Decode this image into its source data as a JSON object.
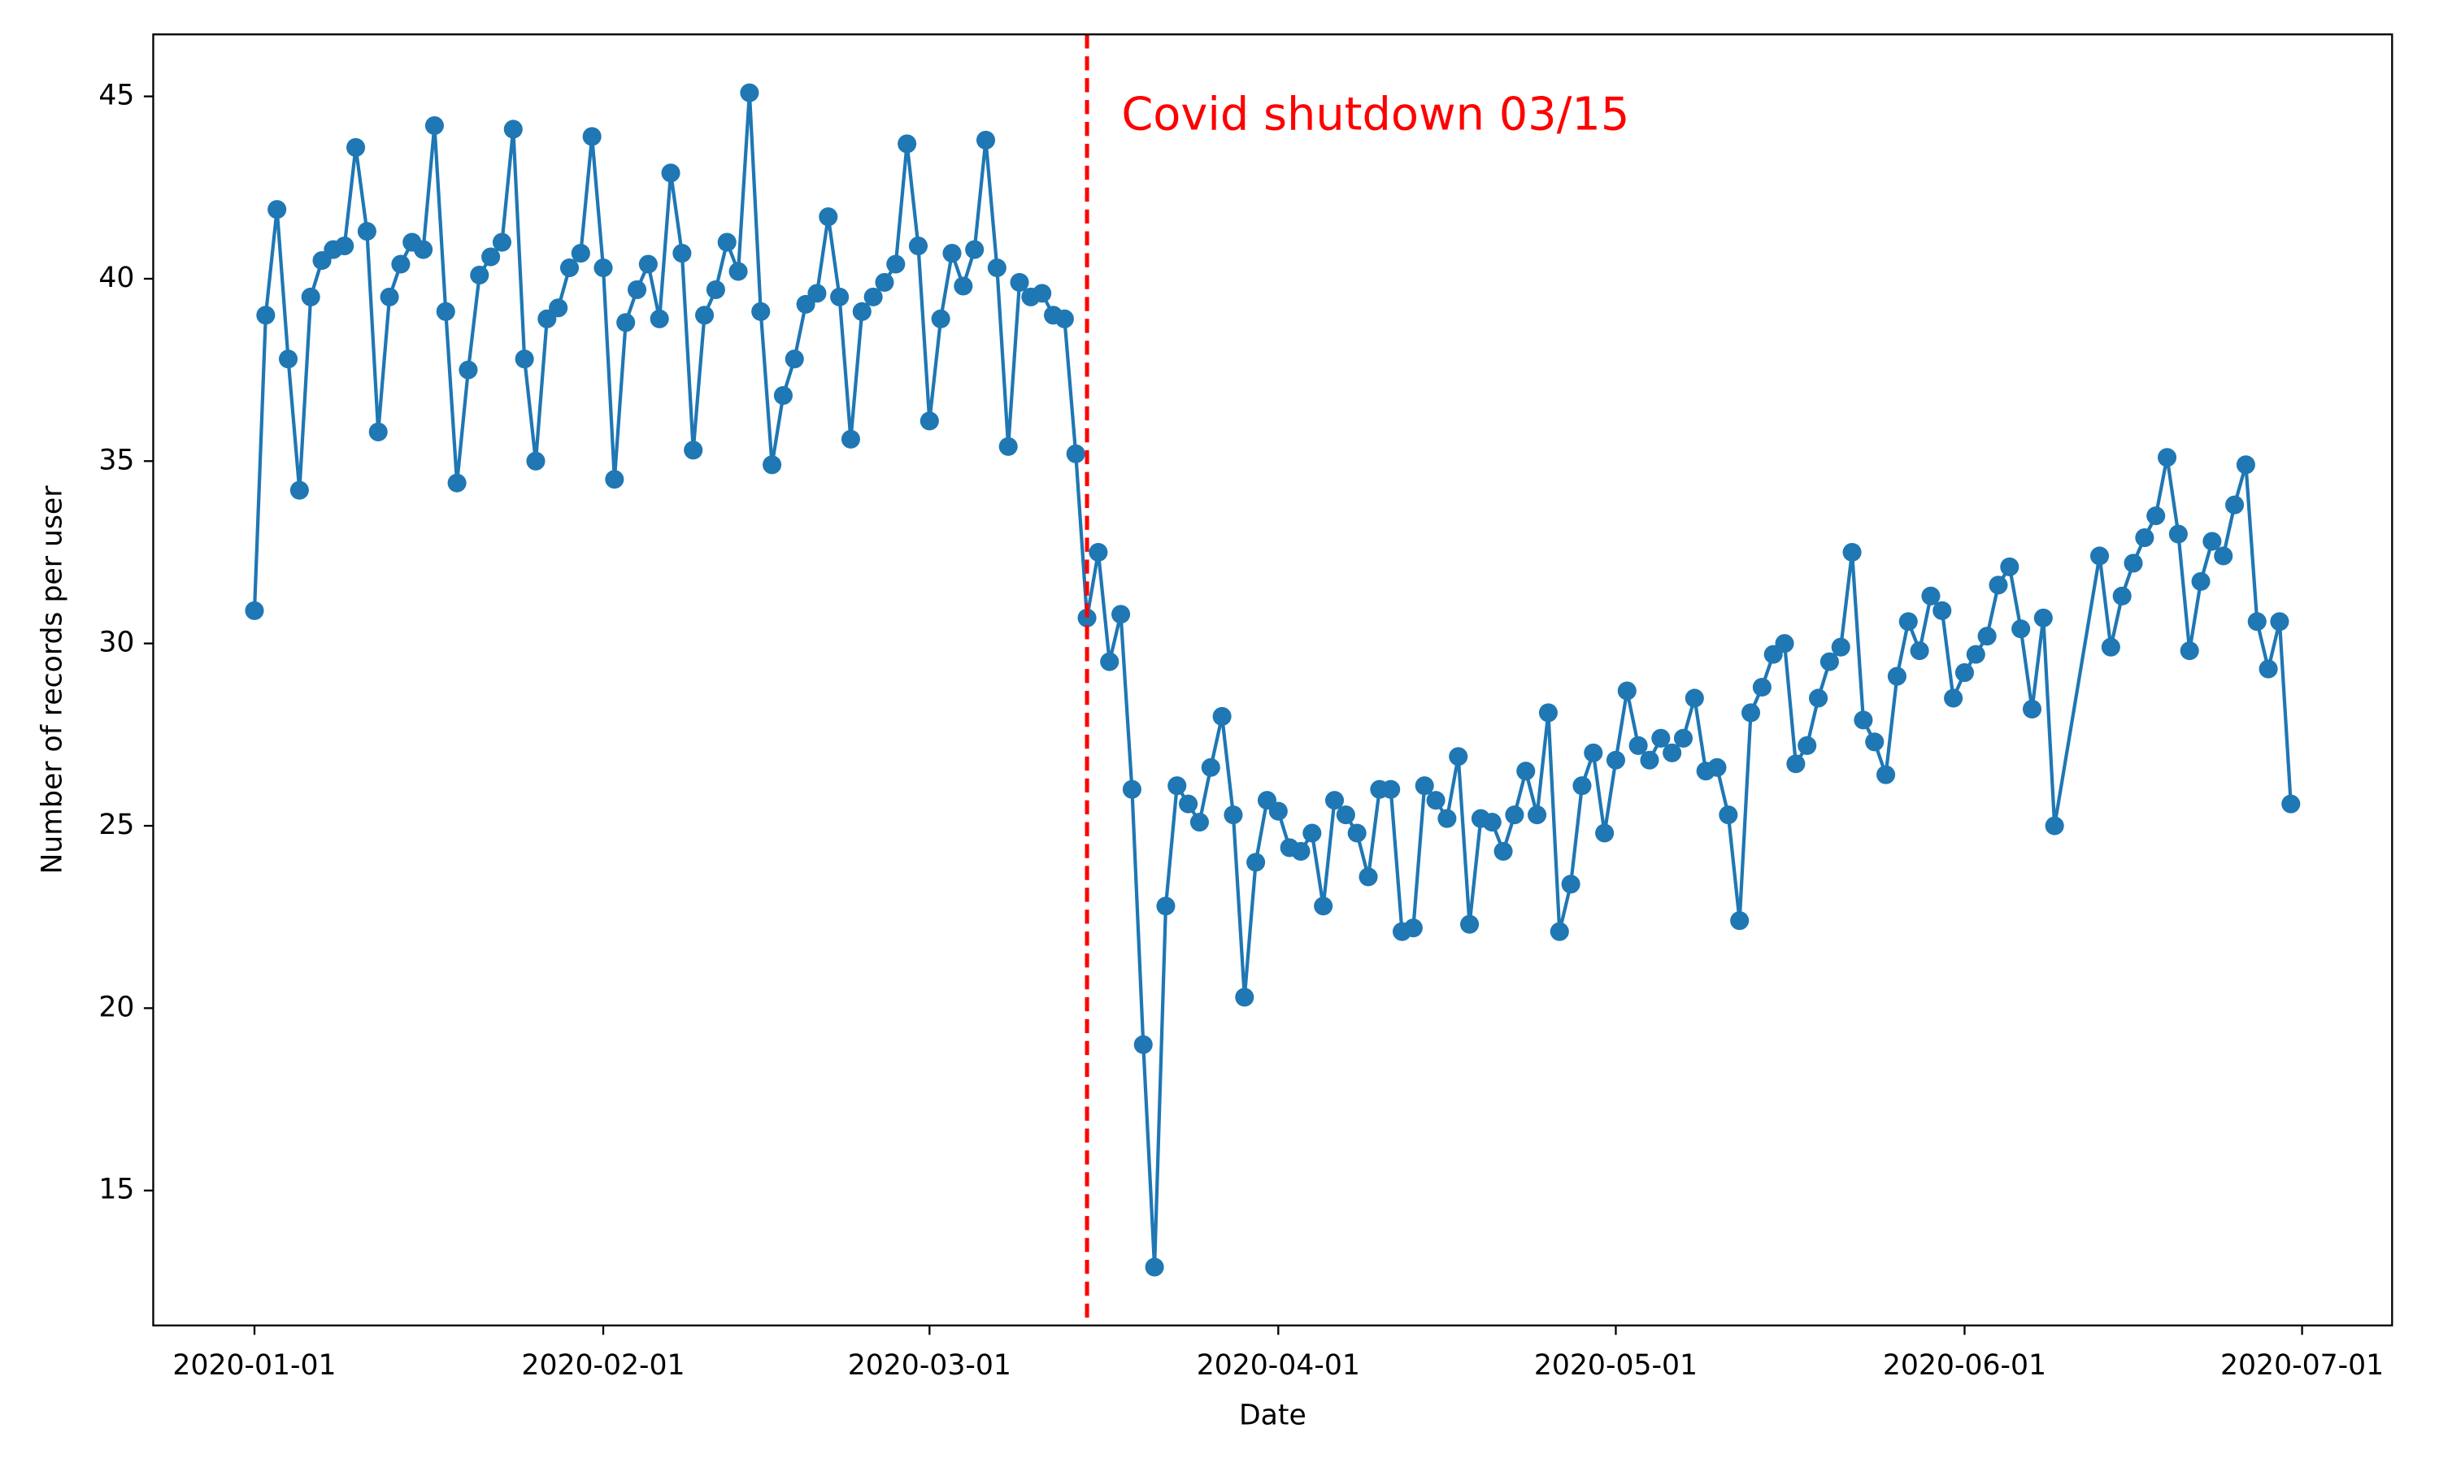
{
  "chart_data": {
    "type": "line",
    "xlabel": "Date",
    "ylabel": "Number of records per user",
    "color": "#1f77b4",
    "x": [
      "2020-01-01",
      "2020-01-02",
      "2020-01-03",
      "2020-01-04",
      "2020-01-05",
      "2020-01-06",
      "2020-01-07",
      "2020-01-08",
      "2020-01-09",
      "2020-01-10",
      "2020-01-11",
      "2020-01-12",
      "2020-01-13",
      "2020-01-14",
      "2020-01-15",
      "2020-01-16",
      "2020-01-17",
      "2020-01-18",
      "2020-01-19",
      "2020-01-20",
      "2020-01-21",
      "2020-01-22",
      "2020-01-23",
      "2020-01-24",
      "2020-01-25",
      "2020-01-26",
      "2020-01-27",
      "2020-01-28",
      "2020-01-29",
      "2020-01-30",
      "2020-01-31",
      "2020-02-01",
      "2020-02-02",
      "2020-02-03",
      "2020-02-04",
      "2020-02-05",
      "2020-02-06",
      "2020-02-07",
      "2020-02-08",
      "2020-02-09",
      "2020-02-10",
      "2020-02-11",
      "2020-02-12",
      "2020-02-13",
      "2020-02-14",
      "2020-02-15",
      "2020-02-16",
      "2020-02-17",
      "2020-02-18",
      "2020-02-19",
      "2020-02-20",
      "2020-02-21",
      "2020-02-22",
      "2020-02-23",
      "2020-02-24",
      "2020-02-25",
      "2020-02-26",
      "2020-02-27",
      "2020-02-28",
      "2020-02-29",
      "2020-03-01",
      "2020-03-02",
      "2020-03-03",
      "2020-03-04",
      "2020-03-05",
      "2020-03-06",
      "2020-03-07",
      "2020-03-08",
      "2020-03-09",
      "2020-03-10",
      "2020-03-11",
      "2020-03-12",
      "2020-03-13",
      "2020-03-14",
      "2020-03-15",
      "2020-03-16",
      "2020-03-17",
      "2020-03-18",
      "2020-03-19",
      "2020-03-20",
      "2020-03-21",
      "2020-03-22",
      "2020-03-23",
      "2020-03-24",
      "2020-03-25",
      "2020-03-26",
      "2020-03-27",
      "2020-03-28",
      "2020-03-29",
      "2020-03-30",
      "2020-03-31",
      "2020-04-01",
      "2020-04-02",
      "2020-04-03",
      "2020-04-04",
      "2020-04-05",
      "2020-04-06",
      "2020-04-07",
      "2020-04-08",
      "2020-04-09",
      "2020-04-10",
      "2020-04-11",
      "2020-04-12",
      "2020-04-13",
      "2020-04-14",
      "2020-04-15",
      "2020-04-16",
      "2020-04-17",
      "2020-04-18",
      "2020-04-19",
      "2020-04-20",
      "2020-04-21",
      "2020-04-22",
      "2020-04-23",
      "2020-04-24",
      "2020-04-25",
      "2020-04-26",
      "2020-04-27",
      "2020-04-28",
      "2020-04-29",
      "2020-04-30",
      "2020-05-01",
      "2020-05-02",
      "2020-05-03",
      "2020-05-04",
      "2020-05-05",
      "2020-05-06",
      "2020-05-07",
      "2020-05-08",
      "2020-05-09",
      "2020-05-10",
      "2020-05-11",
      "2020-05-12",
      "2020-05-13",
      "2020-05-14",
      "2020-05-15",
      "2020-05-16",
      "2020-05-17",
      "2020-05-18",
      "2020-05-19",
      "2020-05-20",
      "2020-05-21",
      "2020-05-22",
      "2020-05-23",
      "2020-05-24",
      "2020-05-25",
      "2020-05-26",
      "2020-05-27",
      "2020-05-28",
      "2020-05-29",
      "2020-05-30",
      "2020-05-31",
      "2020-06-01",
      "2020-06-02",
      "2020-06-03",
      "2020-06-04",
      "2020-06-05",
      "2020-06-06",
      "2020-06-07",
      "2020-06-08",
      "2020-06-09",
      "2020-06-13",
      "2020-06-14",
      "2020-06-15",
      "2020-06-16",
      "2020-06-17",
      "2020-06-18",
      "2020-06-19",
      "2020-06-20",
      "2020-06-21",
      "2020-06-22",
      "2020-06-23",
      "2020-06-24",
      "2020-06-25",
      "2020-06-26",
      "2020-06-27",
      "2020-06-28",
      "2020-06-29",
      "2020-06-30"
    ],
    "values": [
      30.9,
      39.0,
      41.9,
      37.8,
      34.2,
      39.5,
      40.5,
      40.8,
      40.9,
      43.6,
      41.3,
      35.8,
      39.5,
      40.4,
      41.0,
      40.8,
      44.2,
      39.1,
      34.4,
      37.5,
      40.1,
      40.6,
      41.0,
      44.1,
      37.8,
      35.0,
      38.9,
      39.2,
      40.3,
      40.7,
      43.9,
      40.3,
      34.5,
      38.8,
      39.7,
      40.4,
      38.9,
      42.9,
      40.7,
      35.3,
      39.0,
      39.7,
      41.0,
      40.2,
      45.1,
      39.1,
      34.9,
      36.8,
      37.8,
      39.3,
      39.6,
      41.7,
      39.5,
      35.6,
      39.1,
      39.5,
      39.9,
      40.4,
      43.7,
      40.9,
      36.1,
      38.9,
      40.7,
      39.8,
      40.8,
      43.8,
      40.3,
      35.4,
      39.9,
      39.5,
      39.6,
      39.0,
      38.9,
      35.2,
      30.7,
      32.5,
      29.5,
      30.8,
      26.0,
      19.0,
      12.9,
      22.8,
      26.1,
      25.6,
      25.1,
      26.6,
      28.0,
      25.3,
      20.3,
      24.0,
      25.7,
      25.4,
      24.4,
      24.3,
      24.8,
      22.8,
      25.7,
      25.3,
      24.8,
      23.6,
      26.0,
      26.0,
      22.1,
      22.2,
      26.1,
      25.7,
      25.2,
      26.9,
      22.3,
      25.2,
      25.1,
      24.3,
      25.3,
      26.5,
      25.3,
      28.1,
      22.1,
      23.4,
      26.1,
      27.0,
      24.8,
      26.8,
      28.7,
      27.2,
      26.8,
      27.4,
      27.0,
      27.4,
      28.5,
      26.5,
      26.6,
      25.3,
      22.4,
      28.1,
      28.8,
      29.7,
      30.0,
      26.7,
      27.2,
      28.5,
      29.5,
      29.9,
      32.5,
      27.9,
      27.3,
      26.4,
      29.1,
      30.6,
      29.8,
      31.3,
      30.9,
      28.5,
      29.2,
      29.7,
      30.2,
      31.6,
      32.1,
      30.4,
      28.2,
      30.7,
      25.0,
      32.4,
      29.9,
      31.3,
      32.2,
      32.9,
      33.5,
      35.1,
      33.0,
      29.8,
      31.7,
      32.8,
      32.4,
      33.8,
      34.9,
      30.6,
      29.3,
      30.6,
      25.6
    ],
    "xlim": [
      "2019-12-23",
      "2020-07-09"
    ],
    "xticks": [
      "2020-01-01",
      "2020-02-01",
      "2020-03-01",
      "2020-04-01",
      "2020-05-01",
      "2020-06-01",
      "2020-07-01"
    ],
    "ylim": [
      11.3,
      46.7
    ],
    "yticks": [
      15,
      20,
      25,
      30,
      35,
      40,
      45
    ],
    "vline": {
      "x": "2020-03-15",
      "color": "#ff0000",
      "label": "Covid shutdown 03/15"
    }
  }
}
